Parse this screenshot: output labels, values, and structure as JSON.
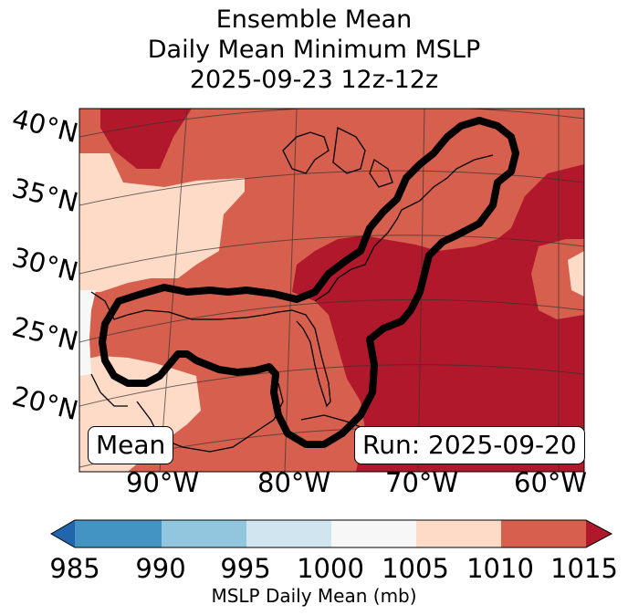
{
  "title": {
    "line1": "Ensemble Mean",
    "line2": "Daily Mean Minimum MSLP",
    "line3": "2025-09-23 12z-12z"
  },
  "lat_labels": [
    "40°N",
    "35°N",
    "30°N",
    "25°N",
    "20°N"
  ],
  "lon_labels": [
    "90°W",
    "80°W",
    "70°W",
    "60°W"
  ],
  "boxes": {
    "left": "Mean",
    "right": "Run: 2025-09-20"
  },
  "colorbar": {
    "label": "MSLP Daily Mean (mb)",
    "ticks": [
      "985",
      "990",
      "995",
      "1000",
      "1005",
      "1010",
      "1015"
    ],
    "bins": [
      {
        "range": "<985",
        "color": "#2166ac"
      },
      {
        "range": "985-990",
        "color": "#4393c3"
      },
      {
        "range": "990-995",
        "color": "#92c5de"
      },
      {
        "range": "995-1000",
        "color": "#d1e5f0"
      },
      {
        "range": "1000-1005",
        "color": "#f7f7f7"
      },
      {
        "range": "1005-1010",
        "color": "#fddbc7"
      },
      {
        "range": "1010-1015",
        "color": "#d6604d"
      },
      {
        "range": ">1015",
        "color": "#b2182b"
      }
    ]
  }
}
